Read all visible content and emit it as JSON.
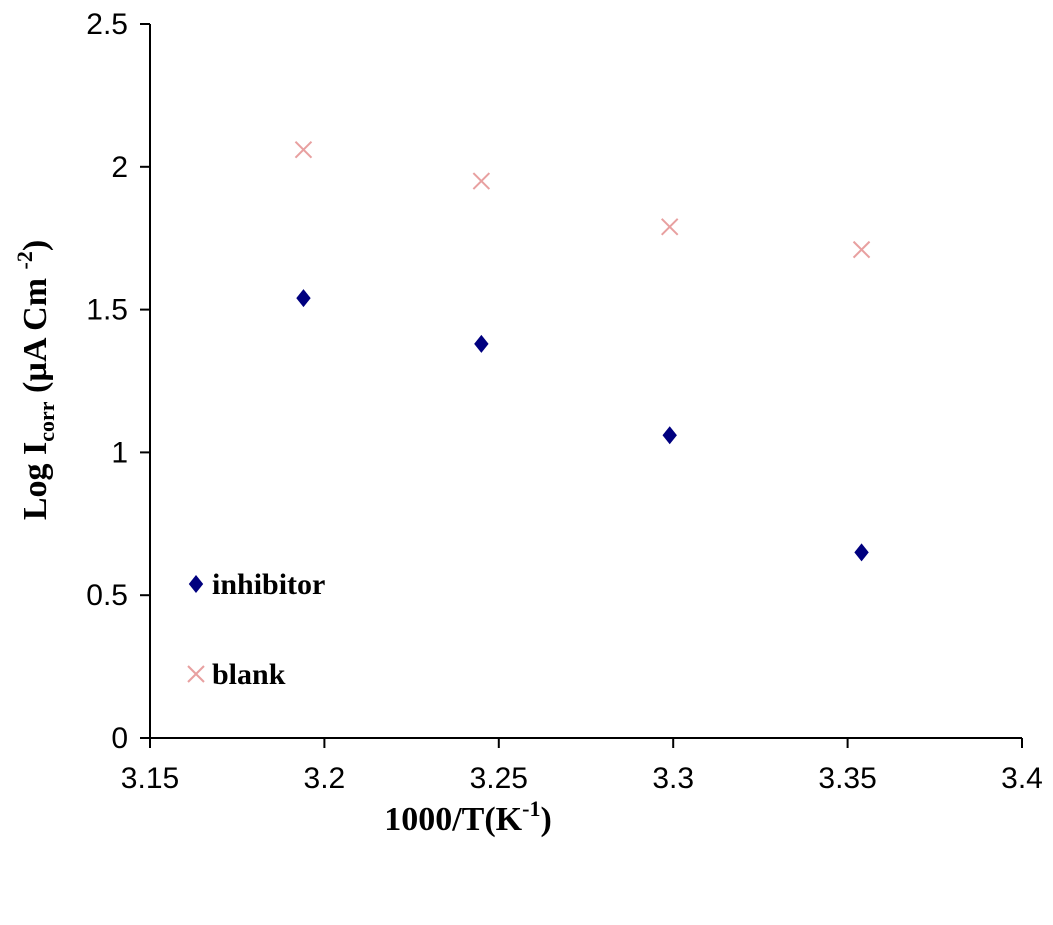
{
  "chart_data": {
    "type": "scatter",
    "title": "",
    "xlabel": {
      "main": "1000/T(K",
      "sup": "-1",
      "tail": ")"
    },
    "ylabel": {
      "main": "Log I",
      "sub": "corr",
      "unit": " (µA Cm ",
      "sup": "-2",
      "tail": ")"
    },
    "xlim": [
      3.15,
      3.4
    ],
    "ylim": [
      0,
      2.5
    ],
    "xticks": [
      3.15,
      3.2,
      3.25,
      3.3,
      3.35,
      3.4
    ],
    "xtick_labels": [
      "3.15",
      "3.2",
      "3.25",
      "3.3",
      "3.35",
      "3.4"
    ],
    "yticks": [
      0,
      0.5,
      1,
      1.5,
      2,
      2.5
    ],
    "ytick_labels": [
      "0",
      "0.5",
      "1",
      "1.5",
      "2",
      "2.5"
    ],
    "grid": false,
    "legend_position": "lower-left",
    "series": [
      {
        "name": "inhibitor",
        "marker": "diamond",
        "color": "#00007f",
        "x": [
          3.194,
          3.245,
          3.299,
          3.354
        ],
        "y": [
          1.54,
          1.38,
          1.06,
          0.65
        ]
      },
      {
        "name": "blank",
        "marker": "x",
        "color": "#e8a0a0",
        "x": [
          3.194,
          3.245,
          3.299,
          3.354
        ],
        "y": [
          2.06,
          1.95,
          1.79,
          1.71
        ]
      }
    ]
  }
}
